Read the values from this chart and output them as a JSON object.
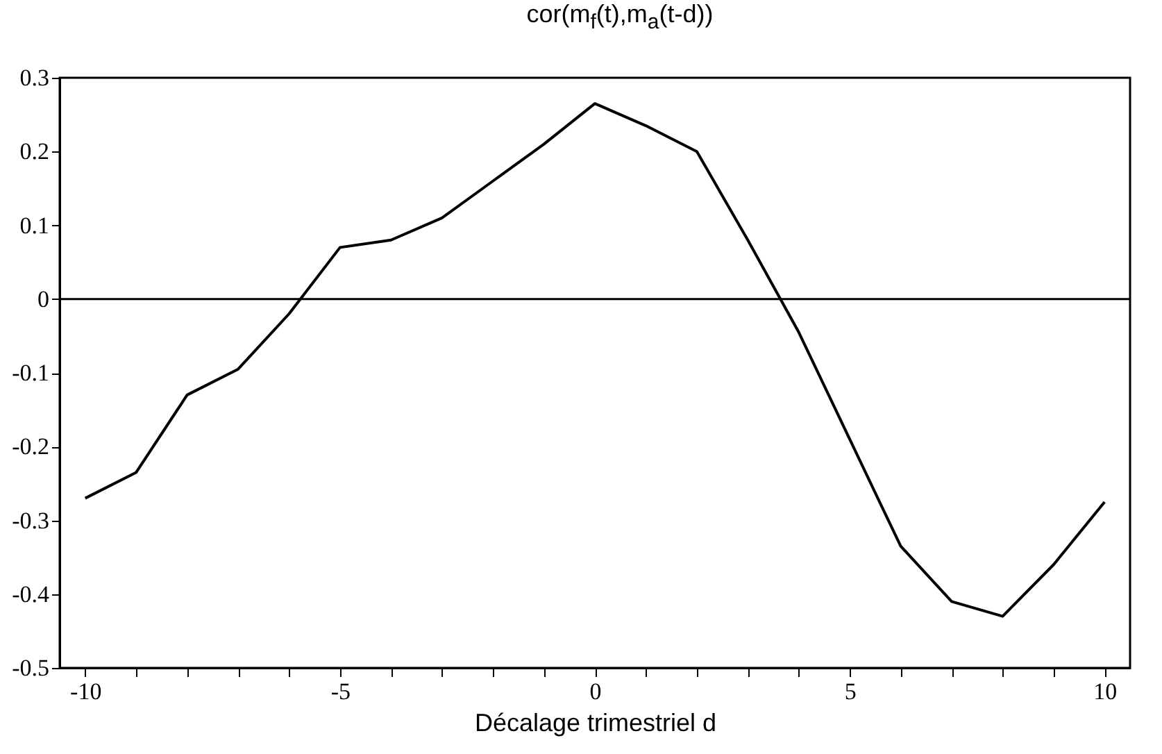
{
  "chart_data": {
    "type": "line",
    "title": "cor(m$_{f}$(t),m$_{a}$(t-d))",
    "xlabel": "Décalage trimestriel d",
    "x": [
      -10,
      -9,
      -8,
      -7,
      -6,
      -5,
      -4,
      -3,
      -2,
      -1,
      0,
      1,
      2,
      3,
      4,
      5,
      6,
      7,
      8,
      9,
      10
    ],
    "series": [
      {
        "color": "#000000",
        "values": [
          -0.27,
          -0.235,
          -0.13,
          -0.095,
          -0.02,
          0.07,
          0.08,
          0.11,
          0.16,
          0.21,
          0.265,
          0.235,
          0.2,
          0.08,
          -0.045,
          -0.19,
          -0.335,
          -0.41,
          -0.43,
          -0.36,
          -0.275
        ]
      }
    ],
    "xlim": [
      -10.5,
      10.5
    ],
    "xticks": [
      -10,
      {
        "value": -9,
        "label": null
      },
      {
        "value": -8,
        "label": null
      },
      {
        "value": -7,
        "label": null
      },
      {
        "value": -6,
        "label": null
      },
      -5,
      {
        "value": -4,
        "label": null
      },
      {
        "value": -3,
        "label": null
      },
      {
        "value": -2,
        "label": null
      },
      {
        "value": -1,
        "label": null
      },
      0,
      {
        "value": 1,
        "label": null
      },
      {
        "value": 2,
        "label": null
      },
      {
        "value": 3,
        "label": null
      },
      {
        "value": 4,
        "label": null
      },
      5,
      {
        "value": 6,
        "label": null
      },
      {
        "value": 7,
        "label": null
      },
      {
        "value": 8,
        "label": null
      },
      {
        "value": 9,
        "label": null
      },
      10
    ],
    "ylim": [
      -0.5,
      0.3
    ],
    "yticks": [
      -0.5,
      -0.4,
      -0.3,
      -0.2,
      -0.1,
      0,
      0.1,
      0.2,
      0.3
    ],
    "ref_lines": [
      {
        "axis": "y",
        "value": 0,
        "color": "#000000"
      }
    ],
    "grid": false,
    "legend": false,
    "marker": "none",
    "line_style": "solid"
  }
}
